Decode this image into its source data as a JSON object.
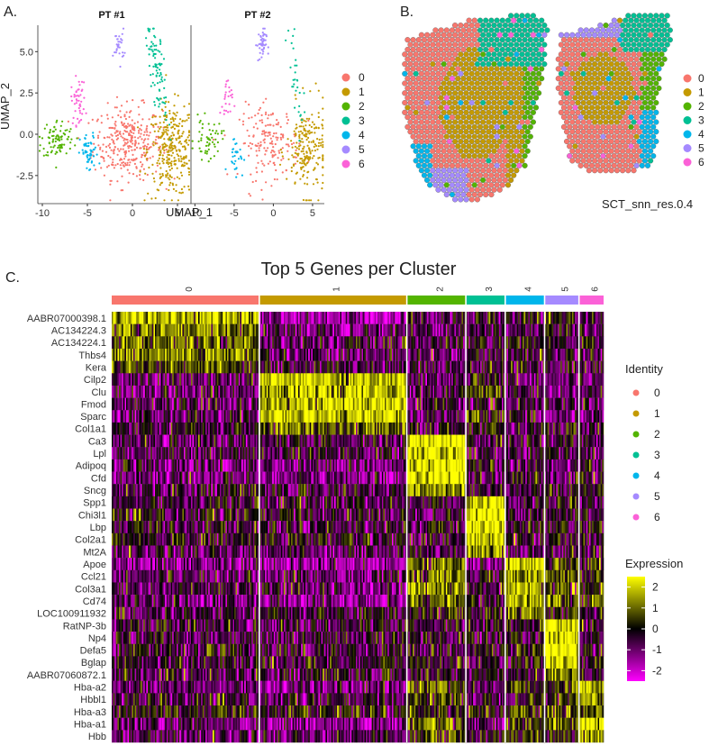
{
  "panels": {
    "a": {
      "label": "A."
    },
    "b": {
      "label": "B."
    },
    "c": {
      "label": "C."
    }
  },
  "palette": {
    "0": "#F8766D",
    "1": "#C49A00",
    "2": "#53B400",
    "3": "#00C094",
    "4": "#00B6EB",
    "5": "#A58AFF",
    "6": "#FB61D7"
  },
  "heat_colors": {
    "low": "#FF00FF",
    "mid": "#000000",
    "high": "#FFFF00"
  },
  "umap": {
    "type": "scatter",
    "facets": [
      "PT #1",
      "PT #2"
    ],
    "xlabel": "UMAP_1",
    "ylabel": "UMAP_2",
    "xlim": [
      -10.5,
      6.5
    ],
    "ylim": [
      -4.2,
      6.6
    ],
    "xticks": [
      -10,
      -5,
      0,
      5
    ],
    "yticks": [
      -2.5,
      0.0,
      2.5,
      5.0
    ],
    "ytick_labels": [
      "-2.5",
      "0.0",
      "2.5",
      "5.0"
    ],
    "legend": [
      "0",
      "1",
      "2",
      "3",
      "4",
      "5",
      "6"
    ],
    "clusters": [
      {
        "id": "0",
        "cx": -0.5,
        "cy": -0.5,
        "sx": 1.9,
        "sy": 1.1,
        "n": [
          320,
          170
        ]
      },
      {
        "id": "1",
        "cx": 4.3,
        "cy": -1.0,
        "sx": 1.3,
        "sy": 1.4,
        "n": [
          300,
          210
        ]
      },
      {
        "id": "2",
        "cx": -8.3,
        "cy": -0.3,
        "sx": 0.9,
        "sy": 0.6,
        "n": [
          90,
          55
        ]
      },
      {
        "id": "3",
        "cx": 2.8,
        "cy": 3.6,
        "sx": 0.5,
        "sy": 1.5,
        "n": [
          90,
          30
        ]
      },
      {
        "id": "4",
        "cx": -4.8,
        "cy": -1.2,
        "sx": 0.5,
        "sy": 0.6,
        "n": [
          55,
          30
        ]
      },
      {
        "id": "5",
        "cx": -1.5,
        "cy": 5.4,
        "sx": 0.3,
        "sy": 0.5,
        "n": [
          30,
          45
        ]
      },
      {
        "id": "6",
        "cx": -6.0,
        "cy": 2.0,
        "sx": 0.4,
        "sy": 0.7,
        "n": [
          45,
          25
        ]
      }
    ]
  },
  "spatial": {
    "legend": [
      "0",
      "1",
      "2",
      "3",
      "4",
      "5",
      "6"
    ],
    "legend_title": "SCT_snn_res.0.4"
  },
  "chart_data": {
    "type": "heatmap",
    "title": "Top 5 Genes per Cluster",
    "clusters": [
      "0",
      "1",
      "2",
      "3",
      "4",
      "5",
      "6"
    ],
    "genes": [
      "AABR07000398.1",
      "AC134224.3",
      "AC134224.1",
      "Thbs4",
      "Kera",
      "Cilp2",
      "Clu",
      "Fmod",
      "Sparc",
      "Col1a1",
      "Ca3",
      "Lpl",
      "Adipoq",
      "Cfd",
      "Sncg",
      "Spp1",
      "Chi3l1",
      "Lbp",
      "Col2a1",
      "Mt2A",
      "Apoe",
      "Ccl21",
      "Col3a1",
      "Cd74",
      "LOC100911932",
      "RatNP-3b",
      "Np4",
      "Defa5",
      "Bglap",
      "AABR07060872.1",
      "Hba-a2",
      "Hbbl1",
      "Hba-a3",
      "Hba-a1",
      "Hbb"
    ],
    "cluster_widths": [
      0.3,
      0.3,
      0.12,
      0.08,
      0.08,
      0.07,
      0.05
    ],
    "mean_expression": [
      [
        1.8,
        -1.5,
        -0.6,
        -0.6,
        -0.3,
        -0.2,
        -0.3
      ],
      [
        1.0,
        -0.8,
        -0.7,
        -0.6,
        -0.5,
        -0.4,
        -0.5
      ],
      [
        1.0,
        -0.7,
        -0.6,
        -0.4,
        -0.4,
        -0.3,
        -0.3
      ],
      [
        1.2,
        -0.8,
        -0.9,
        -0.5,
        -0.2,
        -0.4,
        -0.4
      ],
      [
        0.7,
        -0.5,
        -0.5,
        -0.4,
        -0.4,
        -0.4,
        -0.3
      ],
      [
        -0.9,
        2.0,
        -0.8,
        0.3,
        -0.8,
        -0.9,
        -0.8
      ],
      [
        -0.8,
        1.8,
        -0.7,
        0.5,
        -0.6,
        -0.8,
        -0.8
      ],
      [
        -0.9,
        2.1,
        -0.8,
        -0.4,
        -0.8,
        -0.8,
        -0.9
      ],
      [
        -0.8,
        2.0,
        -0.9,
        0.4,
        -0.8,
        -0.9,
        -0.9
      ],
      [
        -0.4,
        0.9,
        -0.4,
        0.2,
        -0.3,
        -0.3,
        -0.4
      ],
      [
        -0.6,
        -0.6,
        2.4,
        -0.5,
        -0.5,
        -0.6,
        -0.4
      ],
      [
        -0.6,
        -0.6,
        2.2,
        -0.4,
        -0.4,
        -0.5,
        -0.3
      ],
      [
        -1.0,
        -1.0,
        2.2,
        -0.6,
        -0.6,
        -0.8,
        -0.3
      ],
      [
        -1.0,
        -1.2,
        2.5,
        -0.7,
        -0.4,
        -0.6,
        -0.3
      ],
      [
        -0.4,
        -0.5,
        1.5,
        -0.2,
        -0.4,
        -0.4,
        -0.3
      ],
      [
        -0.4,
        -0.5,
        -0.4,
        2.2,
        -0.4,
        -0.4,
        -0.4
      ],
      [
        -0.3,
        -0.4,
        -0.3,
        2.4,
        -0.3,
        -0.3,
        -0.3
      ],
      [
        -0.3,
        -0.4,
        -0.4,
        2.3,
        -0.3,
        -0.3,
        -0.3
      ],
      [
        -0.2,
        -0.2,
        -0.3,
        2.0,
        -0.2,
        -0.2,
        -0.2
      ],
      [
        -0.6,
        -0.8,
        -0.6,
        1.5,
        -0.6,
        -0.6,
        -0.5
      ],
      [
        -1.2,
        -1.6,
        1.2,
        -1.3,
        2.2,
        0.8,
        0.3
      ],
      [
        -0.6,
        -0.8,
        0.9,
        -0.3,
        1.3,
        0.6,
        0.3
      ],
      [
        -0.6,
        -0.8,
        1.2,
        -0.3,
        1.2,
        0.7,
        0.3
      ],
      [
        -1.0,
        -1.4,
        0.9,
        -0.3,
        1.4,
        0.8,
        0.5
      ],
      [
        -0.5,
        -0.4,
        0.3,
        -0.2,
        1.0,
        0.3,
        0.2
      ],
      [
        -0.4,
        -0.5,
        -0.4,
        -0.3,
        -0.3,
        2.4,
        -0.2
      ],
      [
        -0.5,
        -0.6,
        -0.4,
        -0.4,
        -0.3,
        2.4,
        -0.2
      ],
      [
        -0.3,
        -0.4,
        -0.3,
        -0.2,
        -0.2,
        2.2,
        -0.1
      ],
      [
        -0.3,
        -0.3,
        -0.2,
        -0.2,
        -0.2,
        2.0,
        -0.1
      ],
      [
        -0.4,
        -0.4,
        -0.3,
        -0.3,
        -0.2,
        1.4,
        -0.2
      ],
      [
        -1.0,
        -1.2,
        0.9,
        -0.8,
        0.4,
        0.6,
        2.0
      ],
      [
        -0.6,
        -0.7,
        0.5,
        -0.4,
        0.2,
        0.3,
        1.5
      ],
      [
        0.1,
        0.2,
        0.3,
        0.2,
        0.2,
        0.3,
        0.9
      ],
      [
        -1.1,
        -1.4,
        1.0,
        -0.8,
        0.5,
        0.8,
        2.1
      ],
      [
        -0.7,
        -0.7,
        0.6,
        -0.4,
        0.5,
        0.4,
        1.6
      ]
    ],
    "color_scale": {
      "label": "Expression",
      "range": [
        -2.5,
        2.5
      ],
      "ticks": [
        2,
        1,
        0,
        -1,
        -2
      ]
    },
    "identity_legend_title": "Identity"
  }
}
